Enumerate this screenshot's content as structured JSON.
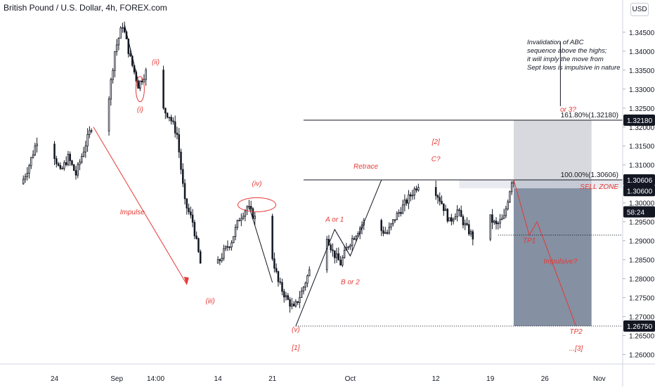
{
  "header": {
    "title": "British Pound / U.S. Dollar, 4h, FOREX.com",
    "currency_button": "USD"
  },
  "colors": {
    "candle": "#131722",
    "annotation_red": "#e53935",
    "price_tag_bg": "#131722",
    "sell_zone_fill": "#56657f",
    "target_zone_fill": "#c9ccd3"
  },
  "chart_data": {
    "type": "candlestick",
    "title": "British Pound / U.S. Dollar, 4h, FOREX.com",
    "ylim": [
      1.2575,
      1.3535
    ],
    "y_tick_labels": [
      "1.34500",
      "1.34000",
      "1.33500",
      "1.33000",
      "1.32500",
      "1.32000",
      "1.31500",
      "1.31000",
      "1.30500",
      "1.30000",
      "1.29500",
      "1.29000",
      "1.28500",
      "1.28000",
      "1.27500",
      "1.27000",
      "1.26500",
      "1.26000"
    ],
    "x_tick_labels": [
      "24",
      "Sep",
      "14:00",
      "14",
      "21",
      "Oct",
      "12",
      "19",
      "26",
      "Nov"
    ],
    "price_path": [
      {
        "date": "Aug 20",
        "price": 1.305
      },
      {
        "date": "Aug 21",
        "price": 1.31
      },
      {
        "date": "Aug 22",
        "price": 1.3165
      },
      {
        "date": "Aug 24",
        "price": 1.314
      },
      {
        "date": "Aug 25",
        "price": 1.308
      },
      {
        "date": "Aug 26",
        "price": 1.312
      },
      {
        "date": "Aug 27",
        "price": 1.3075
      },
      {
        "date": "Aug 28",
        "price": 1.314
      },
      {
        "date": "Aug 29",
        "price": 1.32
      },
      {
        "date": "Aug 31",
        "price": 1.324
      },
      {
        "date": "Sep 1",
        "price": 1.34
      },
      {
        "date": "Sep 2",
        "price": 1.347
      },
      {
        "date": "Sep 3",
        "price": 1.338
      },
      {
        "date": "Sep 4",
        "price": 1.331
      },
      {
        "date": "Sep 5",
        "price": 1.3345
      },
      {
        "date": "Sep 6",
        "price": 1.33
      },
      {
        "date": "Sep 7",
        "price": 1.325
      },
      {
        "date": "Sep 8",
        "price": 1.323
      },
      {
        "date": "Sep 9",
        "price": 1.318
      },
      {
        "date": "Sep 10",
        "price": 1.3
      },
      {
        "date": "Sep 11",
        "price": 1.295
      },
      {
        "date": "Sep 12",
        "price": 1.284
      },
      {
        "date": "Sep 13",
        "price": 1.28
      },
      {
        "date": "Sep 14",
        "price": 1.283
      },
      {
        "date": "Sep 15",
        "price": 1.287
      },
      {
        "date": "Sep 16",
        "price": 1.29
      },
      {
        "date": "Sep 17",
        "price": 1.296
      },
      {
        "date": "Sep 18",
        "price": 1.299
      },
      {
        "date": "Sep 19",
        "price": 1.296
      },
      {
        "date": "Sep 20",
        "price": 1.298
      },
      {
        "date": "Sep 21",
        "price": 1.288
      },
      {
        "date": "Sep 22",
        "price": 1.279
      },
      {
        "date": "Sep 23",
        "price": 1.275
      },
      {
        "date": "Sep 24",
        "price": 1.272
      },
      {
        "date": "Sep 25",
        "price": 1.2765
      },
      {
        "date": "Sep 26",
        "price": 1.282
      },
      {
        "date": "Sep 27",
        "price": 1.289
      },
      {
        "date": "Sep 28",
        "price": 1.293
      },
      {
        "date": "Sep 29",
        "price": 1.287
      },
      {
        "date": "Sep 30",
        "price": 1.284
      },
      {
        "date": "Oct 1",
        "price": 1.289
      },
      {
        "date": "Oct 2",
        "price": 1.292
      },
      {
        "date": "Oct 3",
        "price": 1.295
      },
      {
        "date": "Oct 4",
        "price": 1.299
      },
      {
        "date": "Oct 5",
        "price": 1.293
      },
      {
        "date": "Oct 6",
        "price": 1.292
      },
      {
        "date": "Oct 7",
        "price": 1.296
      },
      {
        "date": "Oct 8",
        "price": 1.299
      },
      {
        "date": "Oct 9",
        "price": 1.302
      },
      {
        "date": "Oct 10",
        "price": 1.305
      },
      {
        "date": "Oct 11",
        "price": 1.307
      },
      {
        "date": "Oct 12",
        "price": 1.304
      },
      {
        "date": "Oct 13",
        "price": 1.3
      },
      {
        "date": "Oct 14",
        "price": 1.295
      },
      {
        "date": "Oct 15",
        "price": 1.298
      },
      {
        "date": "Oct 16",
        "price": 1.294
      },
      {
        "date": "Oct 17",
        "price": 1.291
      },
      {
        "date": "Oct 18",
        "price": 1.293
      },
      {
        "date": "Oct 19",
        "price": 1.2965
      },
      {
        "date": "Oct 20",
        "price": 1.294
      },
      {
        "date": "Oct 21",
        "price": 1.296
      },
      {
        "date": "Oct 22",
        "price": 1.306
      }
    ],
    "horizontal_lines": [
      {
        "label": "161.80%(1.32180)",
        "price": 1.3218
      },
      {
        "label": "100.00%(1.30606)",
        "price": 1.30606
      }
    ],
    "dotted_levels": [
      1.2915,
      1.2675
    ],
    "zones": [
      {
        "name": "target",
        "from_price": 1.30606,
        "to_price": 1.3218,
        "from_date": "Oct 22",
        "to_date": "Nov 1"
      },
      {
        "name": "sell",
        "from_price": 1.2675,
        "to_price": 1.30606,
        "from_date": "Oct 22",
        "to_date": "Nov 1"
      },
      {
        "name": "sell-zone-band",
        "label": "SELL ZONE",
        "from_price": 1.306,
        "to_price": 1.30606
      }
    ],
    "price_tags": [
      {
        "text": "1.32180",
        "price": 1.3218,
        "style": "dark"
      },
      {
        "text": "1.30606",
        "price": 1.30606,
        "style": "dark"
      },
      {
        "text": "1.30600",
        "price": 1.306,
        "style": "dark"
      },
      {
        "text": "58:24",
        "price": 1.3017,
        "style": "dark"
      },
      {
        "text": "1.26750",
        "price": 1.2675,
        "style": "dark"
      }
    ],
    "wave_labels": [
      {
        "text": "(i)",
        "date": "Sep 4",
        "price": 1.324
      },
      {
        "text": "(ii)",
        "date": "Sep 6",
        "price": 1.3365
      },
      {
        "text": "(iii)",
        "date": "Sep 13",
        "price": 1.2735
      },
      {
        "text": "(iv)",
        "date": "Sep 19",
        "price": 1.3045
      },
      {
        "text": "(v)",
        "date": "Sep 24",
        "price": 1.266
      },
      {
        "text": "[1]",
        "date": "Sep 24",
        "price": 1.2612
      },
      {
        "text": "A or 1",
        "date": "Sep 29",
        "price": 1.295
      },
      {
        "text": "B or 2",
        "date": "Oct 1",
        "price": 1.2785
      },
      {
        "text": "Retrace",
        "date": "Oct 3",
        "price": 1.309
      },
      {
        "text": "[2]",
        "date": "Oct 12",
        "price": 1.3155
      },
      {
        "text": "C?",
        "date": "Oct 12",
        "price": 1.311
      },
      {
        "text": "or 3?",
        "date": "Oct 29",
        "price": 1.324
      },
      {
        "text": "TP1",
        "date": "Oct 24",
        "price": 1.2895
      },
      {
        "text": "Impulsive?",
        "date": "Oct 28",
        "price": 1.284
      },
      {
        "text": "TP2",
        "date": "Oct 30",
        "price": 1.2655
      },
      {
        "text": "...[3]",
        "date": "Oct 30",
        "price": 1.261
      },
      {
        "text": "Impulse",
        "date": "Sep 3",
        "price": 1.297
      }
    ],
    "note": [
      "Invalidation of ABC",
      "sequence above the highs;",
      "it will imply the move from",
      "Sept lows is impulsive in nature"
    ]
  }
}
